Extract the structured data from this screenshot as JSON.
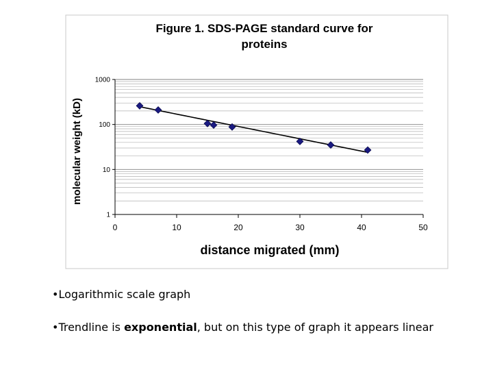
{
  "chart_data": {
    "type": "scatter",
    "title": "Figure 1.  SDS-PAGE standard curve for proteins",
    "title_lines": [
      "Figure 1.  SDS-PAGE standard curve for",
      "proteins"
    ],
    "xlabel": "distance migrated (mm)",
    "ylabel": "molecular weight (kD)",
    "xlim": [
      0,
      50
    ],
    "ylim": [
      1,
      1000
    ],
    "yscale": "log",
    "x_ticks": [
      "0",
      "10",
      "20",
      "30",
      "40",
      "50"
    ],
    "y_ticks": [
      "1",
      "10",
      "100",
      "1000"
    ],
    "grid": "horizontal minor and major gridlines",
    "legend": "none",
    "marker": "diamond",
    "series": [
      {
        "x": [
          4,
          7,
          15,
          16,
          19,
          30,
          35,
          41
        ],
        "y": [
          260,
          210,
          105,
          97,
          88,
          42,
          35,
          27
        ]
      }
    ],
    "trendline": {
      "type": "exponential",
      "x": [
        4,
        41
      ],
      "y": [
        248,
        24
      ]
    },
    "colors": {
      "marker": "#1a1a80",
      "trendline": "#000000",
      "gridline": "#b0b0b0",
      "frame": "#c8c8c8"
    }
  },
  "bullets": [
    {
      "symbol": "•",
      "text": "Logarithmic scale graph"
    },
    {
      "symbol": "•",
      "pre": "Trendline is ",
      "bold": "exponential",
      "post": ", but on this type of graph it appears linear"
    }
  ]
}
